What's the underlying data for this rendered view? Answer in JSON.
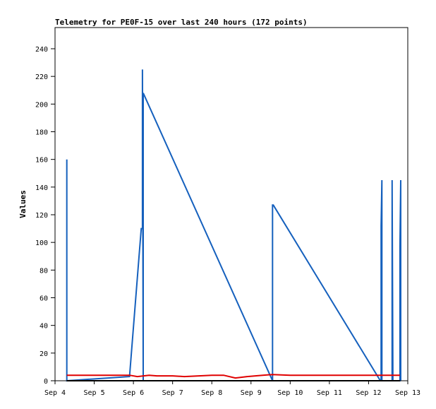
{
  "chart_data": {
    "type": "line",
    "title": "Telemetry for PE0F-15 over last 240 hours (172 points)",
    "xlabel": "",
    "ylabel": "Values",
    "x_ticks": [
      "Sep 4",
      "Sep 5",
      "Sep 6",
      "Sep 7",
      "Sep 8",
      "Sep 9",
      "Sep 10",
      "Sep 11",
      "Sep 12",
      "Sep 13"
    ],
    "y_ticks": [
      0,
      20,
      40,
      60,
      80,
      100,
      120,
      140,
      160,
      180,
      200,
      220,
      240
    ],
    "ylim": [
      0,
      240
    ],
    "xlim_days": [
      4,
      13
    ],
    "grid": false,
    "series": [
      {
        "color": "#1560bd",
        "x": [
          4.3,
          4.3,
          4.3,
          5.9,
          6.2,
          6.23,
          6.23,
          6.25,
          6.25,
          9.55,
          9.55,
          9.57,
          12.3,
          12.32,
          12.32,
          12.34,
          12.34,
          12.6,
          12.6,
          12.62,
          12.8,
          12.8,
          12.82,
          12.82
        ],
        "y": [
          0,
          160,
          0,
          3,
          110,
          110,
          225,
          0,
          208,
          0,
          127,
          127,
          0,
          0,
          112,
          145,
          0,
          0,
          145,
          0,
          0,
          97,
          145,
          0
        ]
      },
      {
        "color": "#e00000",
        "x": [
          4.3,
          5.9,
          6.1,
          6.4,
          6.6,
          7.0,
          7.3,
          8.0,
          8.3,
          8.6,
          8.9,
          9.3,
          9.55,
          10.0,
          11.0,
          12.0,
          12.8
        ],
        "y": [
          4,
          4,
          3,
          4,
          3.5,
          3.5,
          3,
          4,
          4,
          2,
          3,
          4,
          4.5,
          4,
          4,
          4,
          4
        ]
      },
      {
        "color": "#000000",
        "x": [
          4.3,
          12.8
        ],
        "y": [
          0,
          0
        ]
      }
    ]
  }
}
